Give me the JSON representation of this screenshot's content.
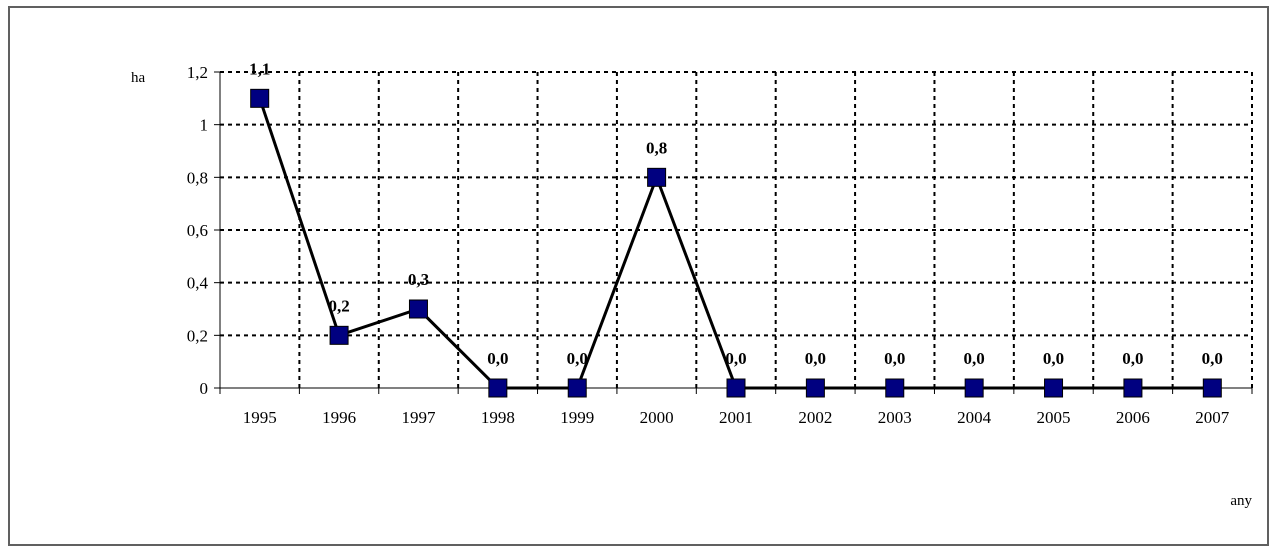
{
  "chart_data": {
    "type": "line",
    "ylabel": "ha",
    "xlabel": "any",
    "categories": [
      "1995",
      "1996",
      "1997",
      "1998",
      "1999",
      "2000",
      "2001",
      "2002",
      "2003",
      "2004",
      "2005",
      "2006",
      "2007"
    ],
    "values": [
      1.1,
      0.2,
      0.3,
      0.0,
      0.0,
      0.8,
      0.0,
      0.0,
      0.0,
      0.0,
      0.0,
      0.0,
      0.0
    ],
    "data_labels": [
      "1,1",
      "0,2",
      "0,3",
      "0,0",
      "0,0",
      "0,8",
      "0,0",
      "0,0",
      "0,0",
      "0,0",
      "0,0",
      "0,0",
      "0,0"
    ],
    "ylim": [
      0,
      1.2
    ],
    "yticks": [
      0,
      0.2,
      0.4,
      0.6,
      0.8,
      1,
      1.2
    ],
    "ytick_labels": [
      "0",
      "0,2",
      "0,4",
      "0,6",
      "0,8",
      "1",
      "1,2"
    ],
    "grid": true,
    "marker": "square",
    "marker_color": "#000080",
    "line_color": "#000000"
  }
}
